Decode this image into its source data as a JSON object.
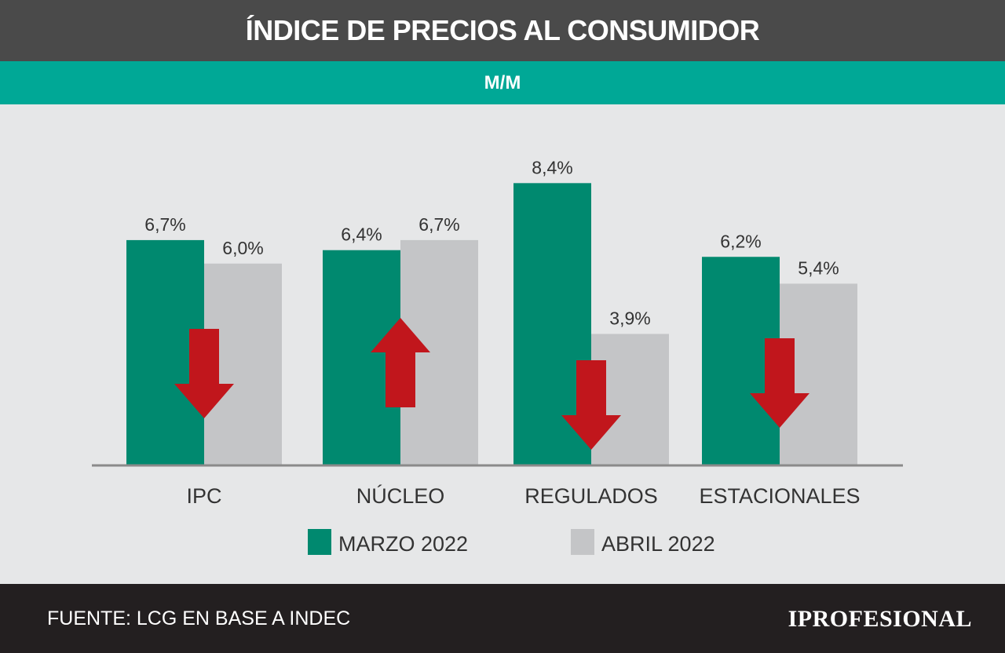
{
  "header": {
    "title": "ÍNDICE DE PRECIOS AL CONSUMIDOR",
    "subtitle": "M/M"
  },
  "chart_data": {
    "type": "bar",
    "categories": [
      "IPC",
      "NÚCLEO",
      "REGULADOS",
      "ESTACIONALES"
    ],
    "series": [
      {
        "name": "MARZO 2022",
        "values": [
          6.7,
          6.4,
          8.4,
          6.2
        ],
        "labels": [
          "6,7%",
          "6,4%",
          "8,4%",
          "6,2%"
        ]
      },
      {
        "name": "ABRIL 2022",
        "values": [
          6.0,
          6.7,
          3.9,
          5.4
        ],
        "labels": [
          "6,0%",
          "6,7%",
          "3,9%",
          "5,4%"
        ]
      }
    ],
    "trend": [
      "down",
      "up",
      "down",
      "down"
    ],
    "colors": {
      "marzo": "#00896f",
      "abril": "#c4c5c7",
      "arrow": "#c1161c",
      "axis": "#8a8a8a"
    },
    "ylim": [
      0,
      8.4
    ],
    "grid": false,
    "legend": "bottom"
  },
  "footer": {
    "source": "FUENTE: LCG EN BASE A INDEC",
    "brand": "IPROFESIONAL"
  }
}
